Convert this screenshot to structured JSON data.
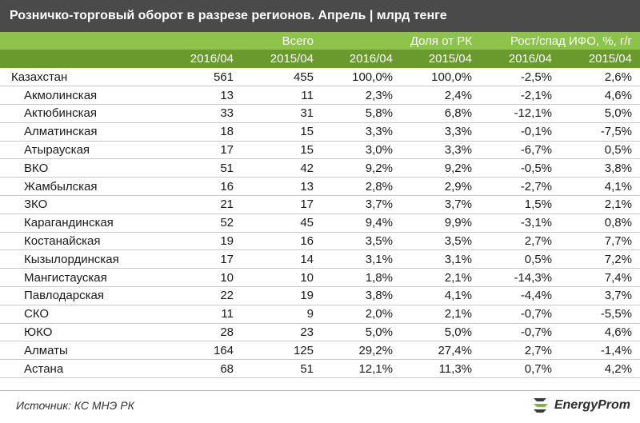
{
  "title": "Розничко-торговый оборот в разрезе регионов. Апрель | млрд тенге",
  "colors": {
    "header_light": "#8cc34a",
    "header_dark": "#6a9a2e",
    "title_bg": "#4a4a4a"
  },
  "headers": {
    "group_total": "Всего",
    "group_share": "Доля от РК",
    "group_growth": "Рост/спад ИФО, %, г/г",
    "years": [
      "2016/04",
      "2015/04",
      "2016/04",
      "2015/04",
      "2016/04",
      "2015/04"
    ]
  },
  "rows": [
    {
      "name": "Казахстан",
      "v2016": "561",
      "v2015": "455",
      "s2016": "100,0%",
      "s2015": "100,0%",
      "g2016": "-2,5%",
      "g2015": "2,6%"
    },
    {
      "name": "Акмолинская",
      "v2016": "13",
      "v2015": "11",
      "s2016": "2,3%",
      "s2015": "2,4%",
      "g2016": "-2,1%",
      "g2015": "4,6%"
    },
    {
      "name": "Актюбинская",
      "v2016": "33",
      "v2015": "31",
      "s2016": "5,8%",
      "s2015": "6,8%",
      "g2016": "-12,1%",
      "g2015": "5,0%"
    },
    {
      "name": "Алматинская",
      "v2016": "18",
      "v2015": "15",
      "s2016": "3,3%",
      "s2015": "3,3%",
      "g2016": "-0,1%",
      "g2015": "-7,5%"
    },
    {
      "name": "Атырауская",
      "v2016": "17",
      "v2015": "15",
      "s2016": "3,0%",
      "s2015": "3,3%",
      "g2016": "-6,7%",
      "g2015": "0,5%"
    },
    {
      "name": "ВКО",
      "v2016": "51",
      "v2015": "42",
      "s2016": "9,2%",
      "s2015": "9,2%",
      "g2016": "-0,5%",
      "g2015": "3,8%"
    },
    {
      "name": "Жамбылская",
      "v2016": "16",
      "v2015": "13",
      "s2016": "2,8%",
      "s2015": "2,9%",
      "g2016": "-2,7%",
      "g2015": "4,1%"
    },
    {
      "name": "ЗКО",
      "v2016": "21",
      "v2015": "17",
      "s2016": "3,7%",
      "s2015": "3,7%",
      "g2016": "1,5%",
      "g2015": "2,1%"
    },
    {
      "name": "Карагандинская",
      "v2016": "52",
      "v2015": "45",
      "s2016": "9,4%",
      "s2015": "9,9%",
      "g2016": "-3,1%",
      "g2015": "0,8%"
    },
    {
      "name": "Костанайская",
      "v2016": "19",
      "v2015": "16",
      "s2016": "3,5%",
      "s2015": "3,5%",
      "g2016": "2,7%",
      "g2015": "7,7%"
    },
    {
      "name": "Кызылординская",
      "v2016": "17",
      "v2015": "14",
      "s2016": "3,1%",
      "s2015": "3,1%",
      "g2016": "0,5%",
      "g2015": "7,2%"
    },
    {
      "name": "Мангистауская",
      "v2016": "10",
      "v2015": "10",
      "s2016": "1,8%",
      "s2015": "2,1%",
      "g2016": "-14,3%",
      "g2015": "7,4%"
    },
    {
      "name": "Павлодарская",
      "v2016": "22",
      "v2015": "19",
      "s2016": "3,8%",
      "s2015": "4,1%",
      "g2016": "-4,4%",
      "g2015": "3,7%"
    },
    {
      "name": "СКО",
      "v2016": "11",
      "v2015": "9",
      "s2016": "2,0%",
      "s2015": "2,1%",
      "g2016": "-0,7%",
      "g2015": "-5,5%"
    },
    {
      "name": "ЮКО",
      "v2016": "28",
      "v2015": "23",
      "s2016": "5,0%",
      "s2015": "5,0%",
      "g2016": "-0,7%",
      "g2015": "4,6%"
    },
    {
      "name": "Алматы",
      "v2016": "164",
      "v2015": "125",
      "s2016": "29,2%",
      "s2015": "27,4%",
      "g2016": "2,7%",
      "g2015": "-1,4%"
    },
    {
      "name": "Астана",
      "v2016": "68",
      "v2015": "51",
      "s2016": "12,1%",
      "s2015": "11,3%",
      "g2016": "0,7%",
      "g2015": "4,2%"
    }
  ],
  "footer": {
    "source": "Источник: КС МНЭ РК",
    "logo_text": "EnergyProm",
    "logo_icon": "energyprom-logo-icon"
  }
}
